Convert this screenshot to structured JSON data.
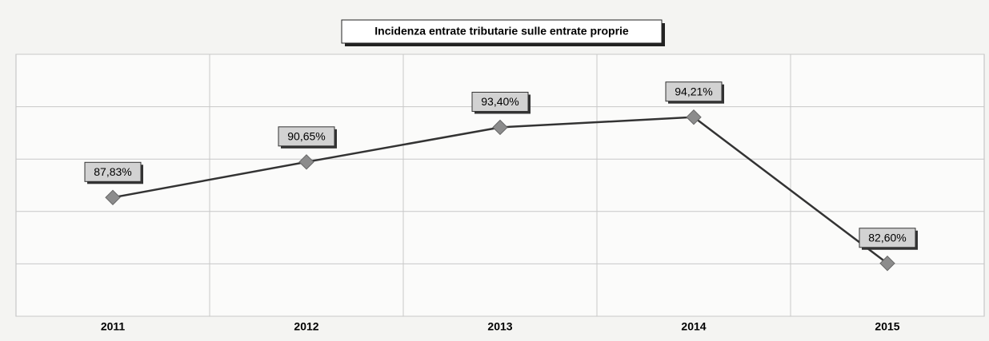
{
  "chart_data": {
    "type": "line",
    "title": "Incidenza entrate tributarie sulle entrate proprie",
    "categories": [
      "2011",
      "2012",
      "2013",
      "2014",
      "2015"
    ],
    "values": [
      87.83,
      90.65,
      93.4,
      94.21,
      82.6
    ],
    "value_labels": [
      "87,83%",
      "90,65%",
      "93,40%",
      "94,21%",
      "82,60%"
    ],
    "color": "#333333",
    "marker_color": "#8c8c8c",
    "ylim": [
      78.4,
      99.2
    ],
    "yticks": [
      78.4,
      82.56,
      86.72,
      90.88,
      95.04,
      99.2
    ],
    "grid": true
  }
}
